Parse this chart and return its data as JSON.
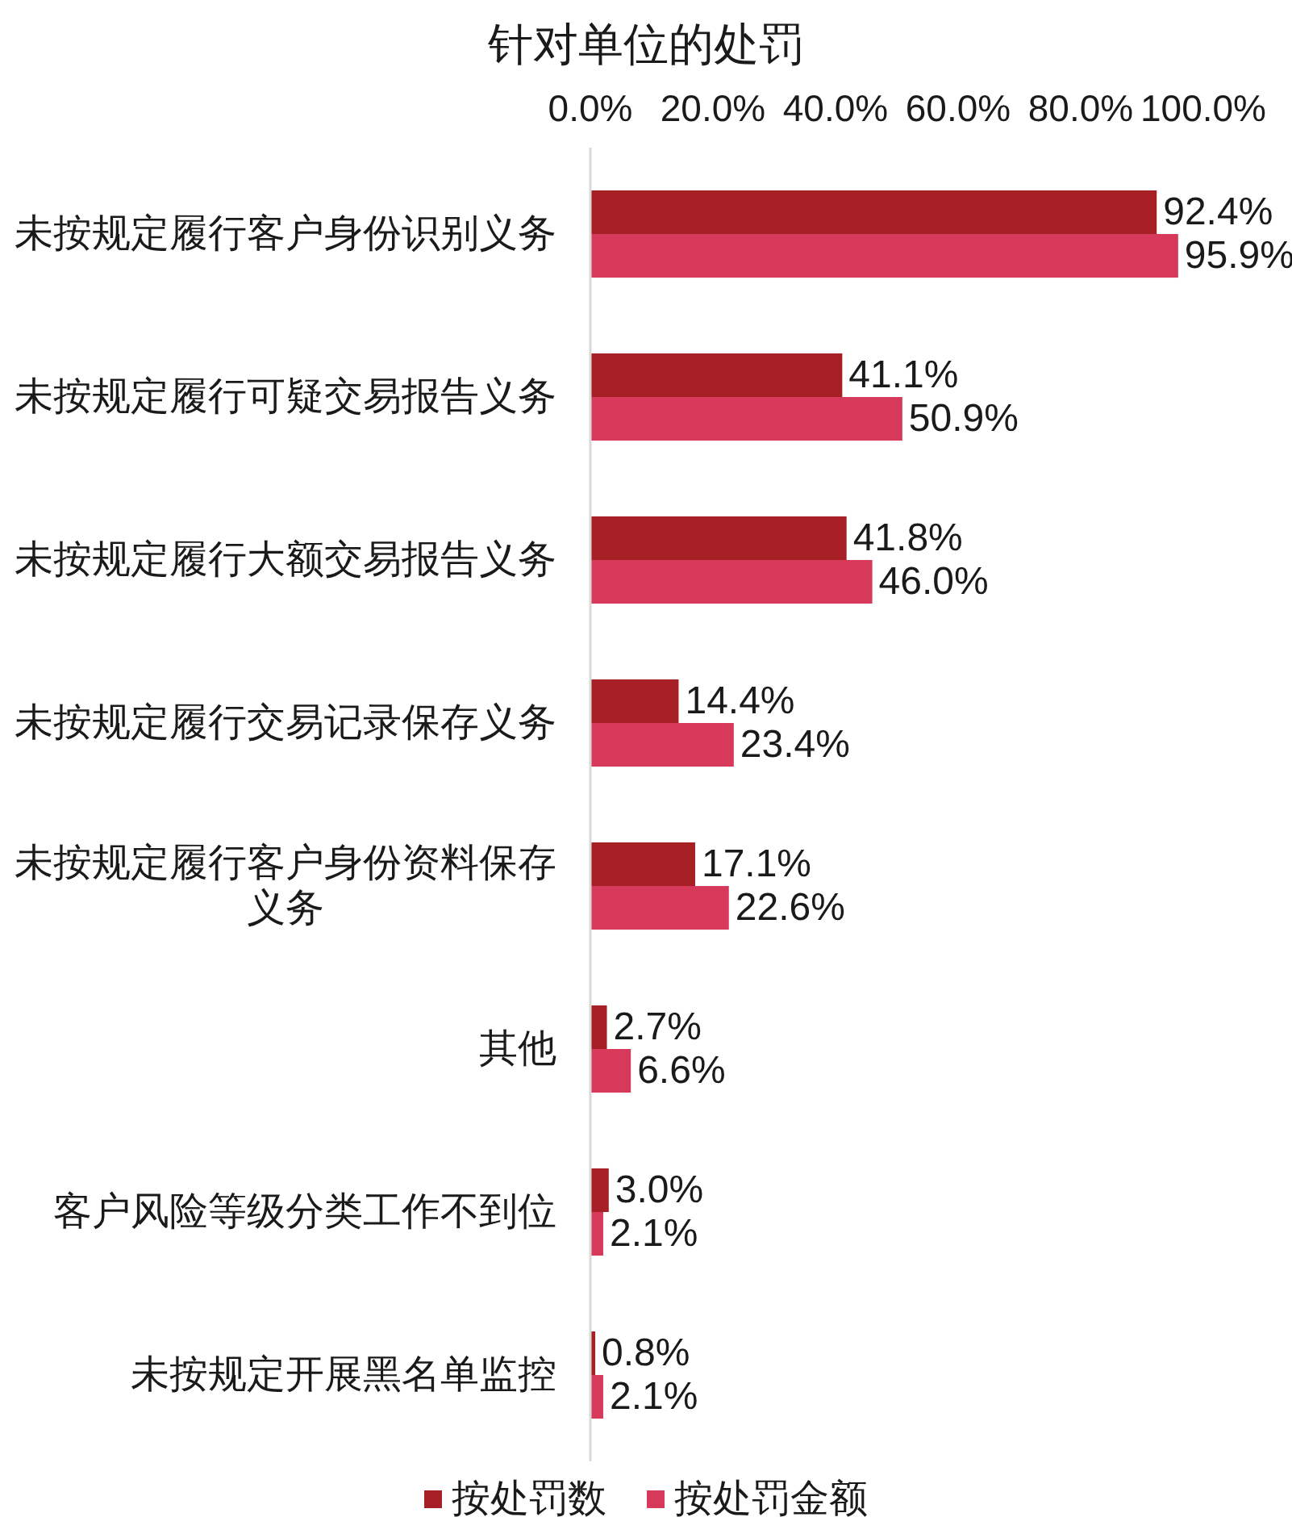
{
  "chart_data": {
    "type": "bar",
    "orientation": "horizontal",
    "title": "针对单位的处罚",
    "categories": [
      "未按规定履行客户身份识别义务",
      "未按规定履行可疑交易报告义务",
      "未按规定履行大额交易报告义务",
      "未按规定履行交易记录保存义务",
      "未按规定履行客户身份资料保存义务",
      "其他",
      "客户风险等级分类工作不到位",
      "未按规定开展黑名单监控"
    ],
    "series": [
      {
        "name": "按处罚数",
        "color": "#a51f24",
        "values": [
          92.4,
          41.1,
          41.8,
          14.4,
          17.1,
          2.7,
          3.0,
          0.8
        ],
        "value_labels": [
          "92.4%",
          "41.1%",
          "41.8%",
          "14.4%",
          "17.1%",
          "2.7%",
          "3.0%",
          "0.8%"
        ]
      },
      {
        "name": "按处罚金额",
        "color": "#d6395a",
        "values": [
          95.9,
          50.9,
          46.0,
          23.4,
          22.6,
          6.6,
          2.1,
          2.1
        ],
        "value_labels": [
          "95.9%",
          "50.9%",
          "46.0%",
          "23.4%",
          "22.6%",
          "6.6%",
          "2.1%",
          "2.1%"
        ]
      }
    ],
    "xlim": [
      0,
      100
    ],
    "xticks": [
      {
        "value": 0,
        "label": "0.0%"
      },
      {
        "value": 20,
        "label": "20.0%"
      },
      {
        "value": 40,
        "label": "40.0%"
      },
      {
        "value": 60,
        "label": "60.0%"
      },
      {
        "value": 80,
        "label": "80.0%"
      },
      {
        "value": 100,
        "label": "100.0%"
      }
    ],
    "legend": "bottom"
  }
}
